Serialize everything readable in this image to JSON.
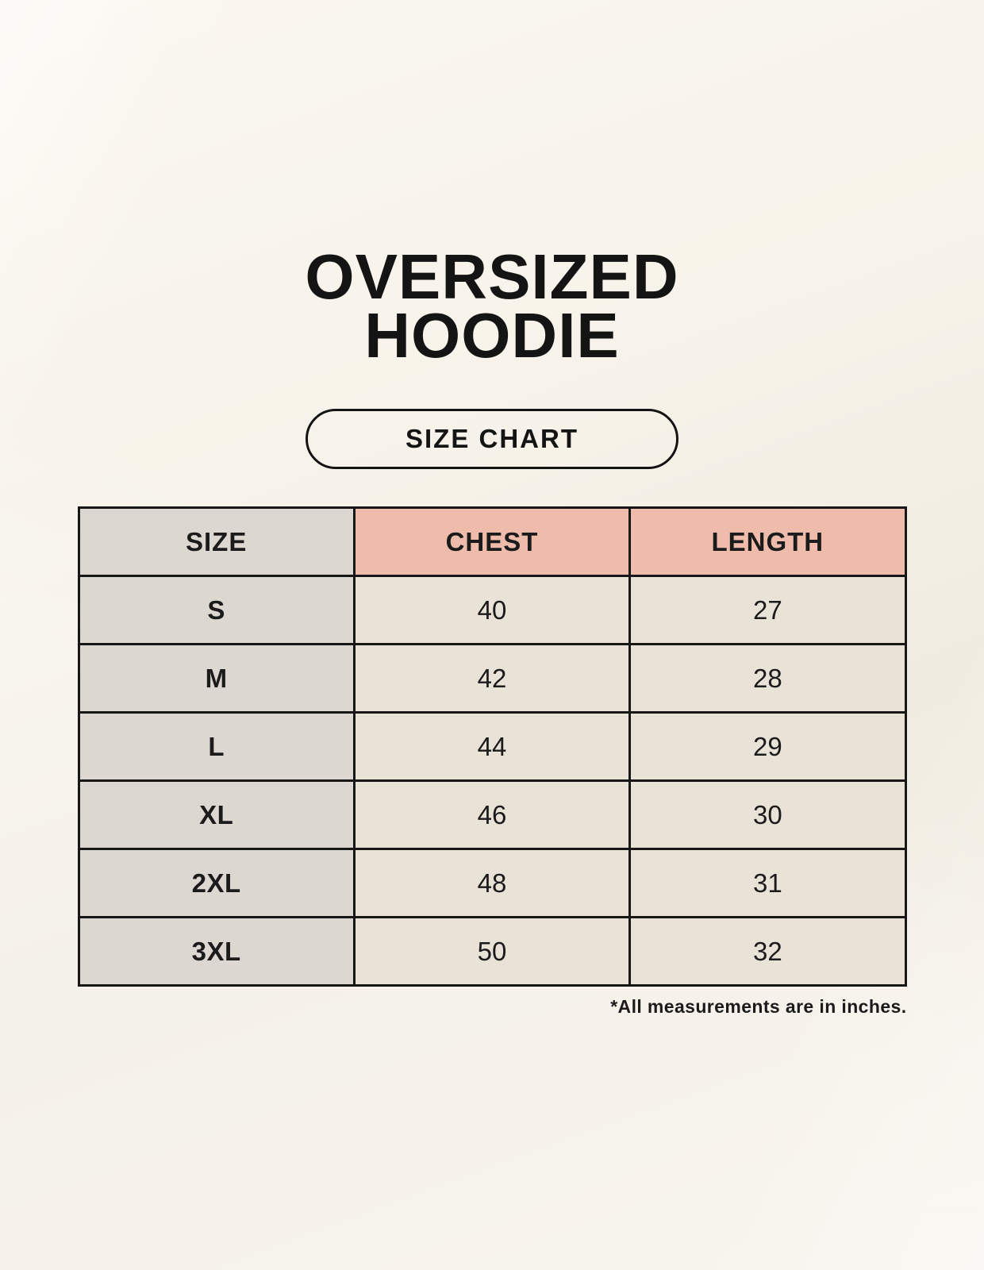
{
  "header": {
    "title_lines": [
      "OVERSIZED",
      "HOODIE"
    ],
    "badge_label": "SIZE CHART"
  },
  "chart_data": {
    "type": "table",
    "title": "OVERSIZED HOODIE",
    "subtitle": "SIZE CHART",
    "columns": [
      "SIZE",
      "CHEST",
      "LENGTH"
    ],
    "rows": [
      [
        "S",
        "40",
        "27"
      ],
      [
        "M",
        "42",
        "28"
      ],
      [
        "L",
        "44",
        "29"
      ],
      [
        "XL",
        "46",
        "30"
      ],
      [
        "2XL",
        "48",
        "31"
      ],
      [
        "3XL",
        "50",
        "32"
      ]
    ],
    "units_note": "*All measurements are in inches.",
    "layout": "three equal columns, centered, 3px black grid"
  },
  "colors": {
    "background": "#f5f1e8",
    "table_border": "#171717",
    "size_column_bg": "#ddd7d2",
    "header_accent_bg": "#efbcab",
    "data_cell_bg": "#e8e2d7",
    "text": "#1b1b1b"
  }
}
